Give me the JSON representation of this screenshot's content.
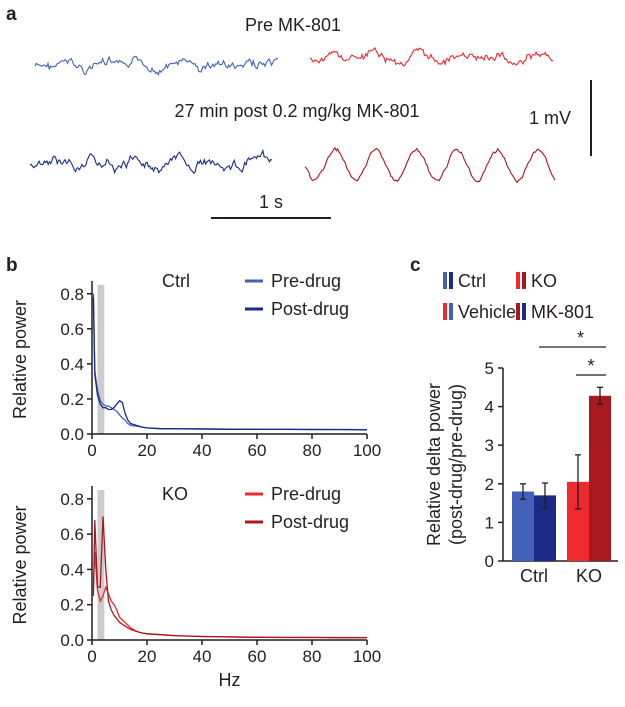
{
  "panel_labels": {
    "a": "a",
    "b": "b",
    "c": "c"
  },
  "panel_a": {
    "pre_label": "Pre MK-801",
    "post_label": "27 min post 0.2 mg/kg MK-801",
    "scale_v": "1 mV",
    "scale_t": "1 s"
  },
  "colors": {
    "ctrl_pre": "#4361b8",
    "ctrl_post": "#1b2a85",
    "ko_pre": "#ee2a2f",
    "ko_post": "#a8181f",
    "shade": "#cccccc",
    "axis": "#231f20"
  },
  "chart_data": [
    {
      "type": "line",
      "panel": "b-top",
      "title": "Ctrl",
      "xlabel": "",
      "ylabel": "Relative power",
      "xlim": [
        0,
        100
      ],
      "ylim": [
        0,
        0.85
      ],
      "xticks": [
        0,
        20,
        40,
        60,
        80,
        100
      ],
      "yticks": [
        0.0,
        0.2,
        0.4,
        0.6,
        0.8
      ],
      "shaded_band": [
        2,
        4.5
      ],
      "legend": [
        "Pre-drug",
        "Post-drug"
      ],
      "series": [
        {
          "name": "Pre-drug",
          "x": [
            0.5,
            1,
            2,
            3,
            4,
            5,
            6,
            7,
            8,
            9,
            10,
            11,
            12,
            13,
            14,
            16,
            18,
            20,
            25,
            30,
            40,
            50,
            60,
            70,
            80,
            90,
            100
          ],
          "y": [
            0.8,
            0.36,
            0.25,
            0.19,
            0.17,
            0.16,
            0.16,
            0.15,
            0.14,
            0.13,
            0.11,
            0.09,
            0.08,
            0.06,
            0.05,
            0.045,
            0.04,
            0.035,
            0.03,
            0.03,
            0.03,
            0.028,
            0.028,
            0.027,
            0.027,
            0.026,
            0.025
          ]
        },
        {
          "name": "Post-drug",
          "x": [
            0.5,
            1,
            2,
            3,
            4,
            5,
            6,
            7,
            8,
            9,
            10,
            11,
            12,
            13,
            14,
            16,
            18,
            20,
            25,
            30,
            40,
            50,
            60,
            70,
            80,
            90,
            100
          ],
          "y": [
            0.78,
            0.34,
            0.22,
            0.17,
            0.15,
            0.15,
            0.14,
            0.14,
            0.15,
            0.17,
            0.19,
            0.18,
            0.12,
            0.08,
            0.06,
            0.05,
            0.04,
            0.035,
            0.03,
            0.03,
            0.028,
            0.027,
            0.026,
            0.026,
            0.025,
            0.025,
            0.024
          ]
        }
      ]
    },
    {
      "type": "line",
      "panel": "b-bottom",
      "title": "KO",
      "xlabel": "Hz",
      "ylabel": "Relative power",
      "xlim": [
        0,
        100
      ],
      "ylim": [
        0,
        0.85
      ],
      "xticks": [
        0,
        20,
        40,
        60,
        80,
        100
      ],
      "yticks": [
        0.0,
        0.2,
        0.4,
        0.6,
        0.8
      ],
      "shaded_band": [
        2,
        4.5
      ],
      "legend": [
        "Pre-drug",
        "Post-drug"
      ],
      "series": [
        {
          "name": "Pre-drug",
          "x": [
            0.5,
            1,
            2,
            3,
            4,
            5,
            6,
            7,
            8,
            9,
            10,
            12,
            14,
            16,
            18,
            20,
            25,
            30,
            40,
            50,
            60,
            70,
            80,
            90,
            100
          ],
          "y": [
            0.3,
            0.5,
            0.28,
            0.22,
            0.25,
            0.3,
            0.26,
            0.22,
            0.2,
            0.17,
            0.13,
            0.1,
            0.07,
            0.05,
            0.04,
            0.035,
            0.03,
            0.025,
            0.02,
            0.018,
            0.016,
            0.015,
            0.015,
            0.014,
            0.014
          ]
        },
        {
          "name": "Post-drug",
          "x": [
            0.5,
            1,
            2,
            3,
            4,
            5,
            6,
            7,
            8,
            9,
            10,
            12,
            14,
            16,
            18,
            20,
            25,
            30,
            40,
            50,
            60,
            70,
            80,
            90,
            100
          ],
          "y": [
            0.25,
            0.68,
            0.3,
            0.3,
            0.7,
            0.4,
            0.22,
            0.17,
            0.14,
            0.12,
            0.1,
            0.08,
            0.06,
            0.05,
            0.04,
            0.035,
            0.03,
            0.025,
            0.02,
            0.017,
            0.015,
            0.014,
            0.014,
            0.013,
            0.013
          ]
        }
      ]
    },
    {
      "type": "bar",
      "panel": "c",
      "ylabel_line1": "Relative delta power",
      "ylabel_line2": "(post-drug/pre-drug)",
      "categories": [
        "Ctrl",
        "KO"
      ],
      "ylim": [
        0,
        5
      ],
      "yticks": [
        0,
        1,
        2,
        3,
        4,
        5
      ],
      "legend": [
        "Ctrl",
        "Vehicle",
        "KO",
        "MK-801"
      ],
      "series": [
        {
          "name": "Vehicle",
          "values": [
            1.8,
            2.05
          ],
          "errors": [
            0.2,
            0.7
          ]
        },
        {
          "name": "MK-801",
          "values": [
            1.7,
            4.28
          ],
          "errors": [
            0.32,
            0.22
          ]
        }
      ],
      "significance": [
        {
          "between": "KO Vehicle vs KO MK-801",
          "label": "*"
        },
        {
          "between": "Ctrl MK-801 vs KO MK-801",
          "label": "*"
        }
      ]
    }
  ]
}
